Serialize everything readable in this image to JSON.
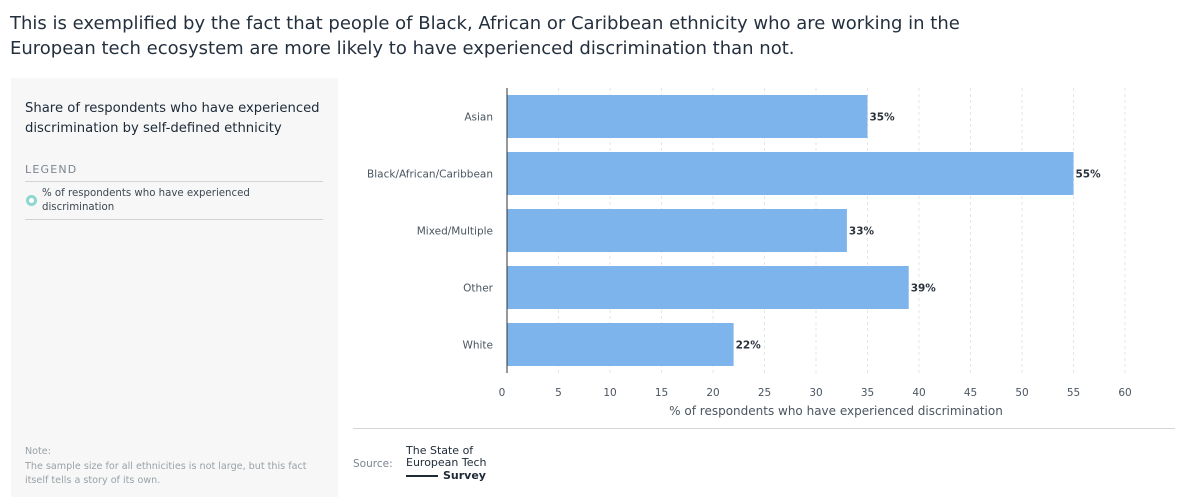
{
  "headline": "This is exemplified by the fact that people of Black, African or Caribbean ethnicity who are working in the European tech ecosystem are more likely to have experienced discrimination than not.",
  "side_panel": {
    "title": "Share of respondents who have experienced discrimination by self-defined ethnicity",
    "legend_heading": "LEGEND",
    "legend_items": [
      {
        "label": "% of respondents who have experienced discrimination",
        "color": "#8ed6cf"
      }
    ],
    "note_label": "Note:",
    "note_text": "The sample size for all ethnicities is not large, but this fact itself tells a story of its own."
  },
  "chart_data": {
    "type": "bar",
    "orientation": "horizontal",
    "categories": [
      "Asian",
      "Black/African/Caribbean",
      "Mixed/Multiple",
      "Other",
      "White"
    ],
    "values": [
      35,
      55,
      33,
      39,
      22
    ],
    "value_labels": [
      "35%",
      "55%",
      "33%",
      "39%",
      "22%"
    ],
    "xlabel": "% of respondents who have experienced discrimination",
    "xlim": [
      0,
      60
    ],
    "xticks": [
      0,
      5,
      10,
      15,
      20,
      25,
      30,
      35,
      40,
      45,
      50,
      55,
      60
    ],
    "bar_color": "#7db4ec",
    "grid": "vertical-dashed"
  },
  "footer": {
    "source_label": "Source:",
    "logo_line1": "The State of",
    "logo_line2": "European Tech",
    "logo_line3": "Survey"
  }
}
